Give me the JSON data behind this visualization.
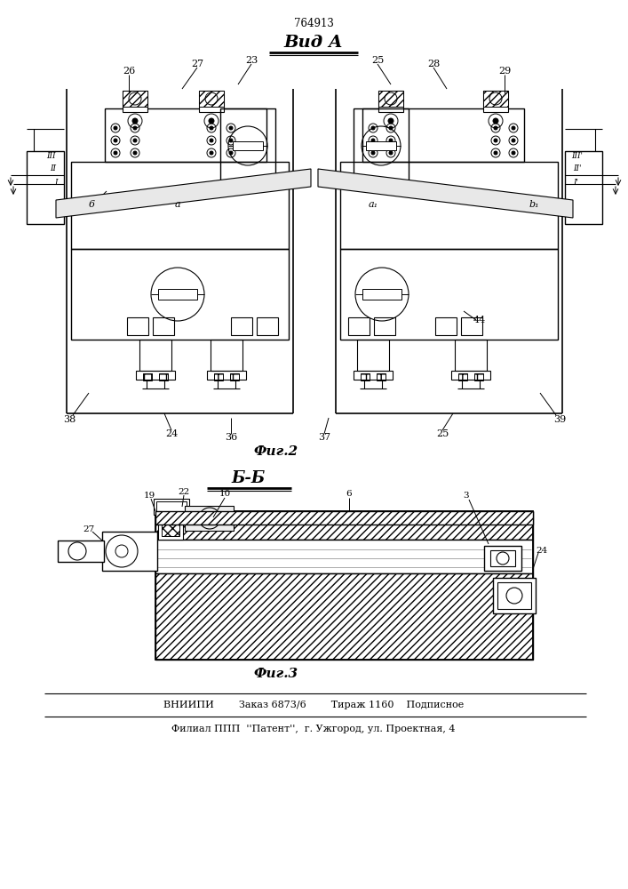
{
  "title_number": "764913",
  "view_a_label": "Вид А",
  "section_bb_label": "Б-Б",
  "fig2_label": "Фиг.2",
  "fig3_label": "Фиг.3",
  "footer_line1": "ВНИИПИ        Заказ 6873/6        Тираж 1160    Подписное",
  "footer_line2": "Филиал ППП  ''Патент'',  г. Ужгород, ул. Проектная, 4",
  "bg_color": "#ffffff"
}
